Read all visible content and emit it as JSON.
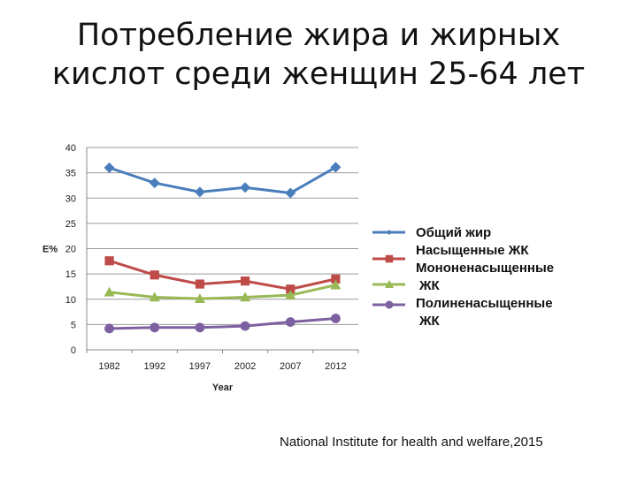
{
  "title": {
    "line1": "Потребление жира и жирных",
    "line2": "кислот среди женщин 25-64 лет"
  },
  "source": "National Institute for health and welfare,2015",
  "legend": [
    {
      "line1": "Общий жир",
      "line2": ""
    },
    {
      "line1": "Насыщенные ЖК",
      "line2": ""
    },
    {
      "line1": "Мононенасыщенные",
      "line2": "ЖК"
    },
    {
      "line1": "Полиненасыщенные",
      "line2": "ЖК"
    }
  ],
  "chart_data": {
    "type": "line",
    "title": "Потребление жира и жирных кислот среди женщин 25-64 лет",
    "xlabel": "Year",
    "ylabel": "E%",
    "ylim": [
      0,
      40
    ],
    "yticks": [
      0,
      5,
      10,
      15,
      20,
      25,
      30,
      35,
      40
    ],
    "grid": true,
    "legend_position": "right",
    "categories": [
      "1982",
      "1992",
      "1997",
      "2002",
      "2007",
      "2012"
    ],
    "series": [
      {
        "name": "Общий жир",
        "color": "#4a7ebb",
        "marker": "diamond",
        "values": [
          36.0,
          33.0,
          31.2,
          32.1,
          31.0,
          36.1
        ]
      },
      {
        "name": "Насыщенные ЖК",
        "color": "#be4b48",
        "marker": "square",
        "values": [
          17.6,
          14.8,
          13.0,
          13.6,
          12.0,
          14.0
        ]
      },
      {
        "name": "Мононенасыщенные ЖК",
        "color": "#98b954",
        "marker": "triangle",
        "values": [
          11.4,
          10.4,
          10.1,
          10.4,
          10.8,
          12.8
        ]
      },
      {
        "name": "Полиненасыщенные ЖК",
        "color": "#7d60a0",
        "marker": "circle",
        "values": [
          4.2,
          4.4,
          4.4,
          4.7,
          5.5,
          6.2
        ]
      }
    ]
  }
}
